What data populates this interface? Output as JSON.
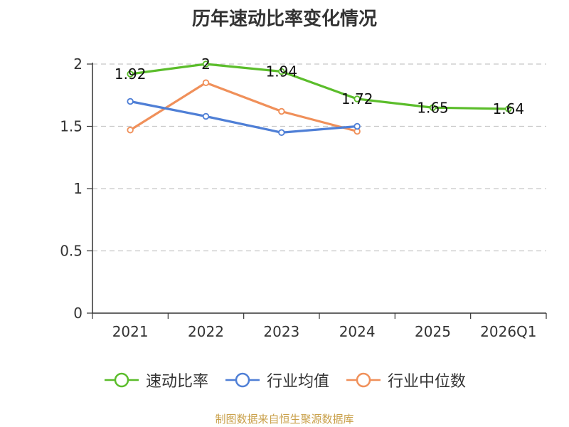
{
  "title": "历年速动比率变化情况",
  "source": "制图数据来自恒生聚源数据库",
  "chart_data": {
    "type": "line",
    "categories": [
      "2021",
      "2022",
      "2023",
      "2024",
      "2025",
      "2026Q1"
    ],
    "ylim": [
      0,
      2
    ],
    "yticks": [
      0,
      0.5,
      1,
      1.5,
      2
    ],
    "ytick_labels": [
      "0",
      "0.5",
      "1",
      "1.5",
      "2"
    ],
    "grid": true,
    "legend_position": "bottom",
    "series": [
      {
        "name": "速动比率",
        "color": "#5bbd2b",
        "values": [
          1.92,
          2.0,
          1.94,
          1.72,
          1.65,
          1.64
        ],
        "labels": [
          "1.92",
          "2",
          "1.94",
          "1.72",
          "1.65",
          "1.64"
        ]
      },
      {
        "name": "行业均值",
        "color": "#4f7fd6",
        "values": [
          1.7,
          1.58,
          1.45,
          1.5,
          null,
          null
        ]
      },
      {
        "name": "行业中位数",
        "color": "#f0905a",
        "values": [
          1.47,
          1.85,
          1.62,
          1.46,
          null,
          null
        ]
      }
    ]
  }
}
